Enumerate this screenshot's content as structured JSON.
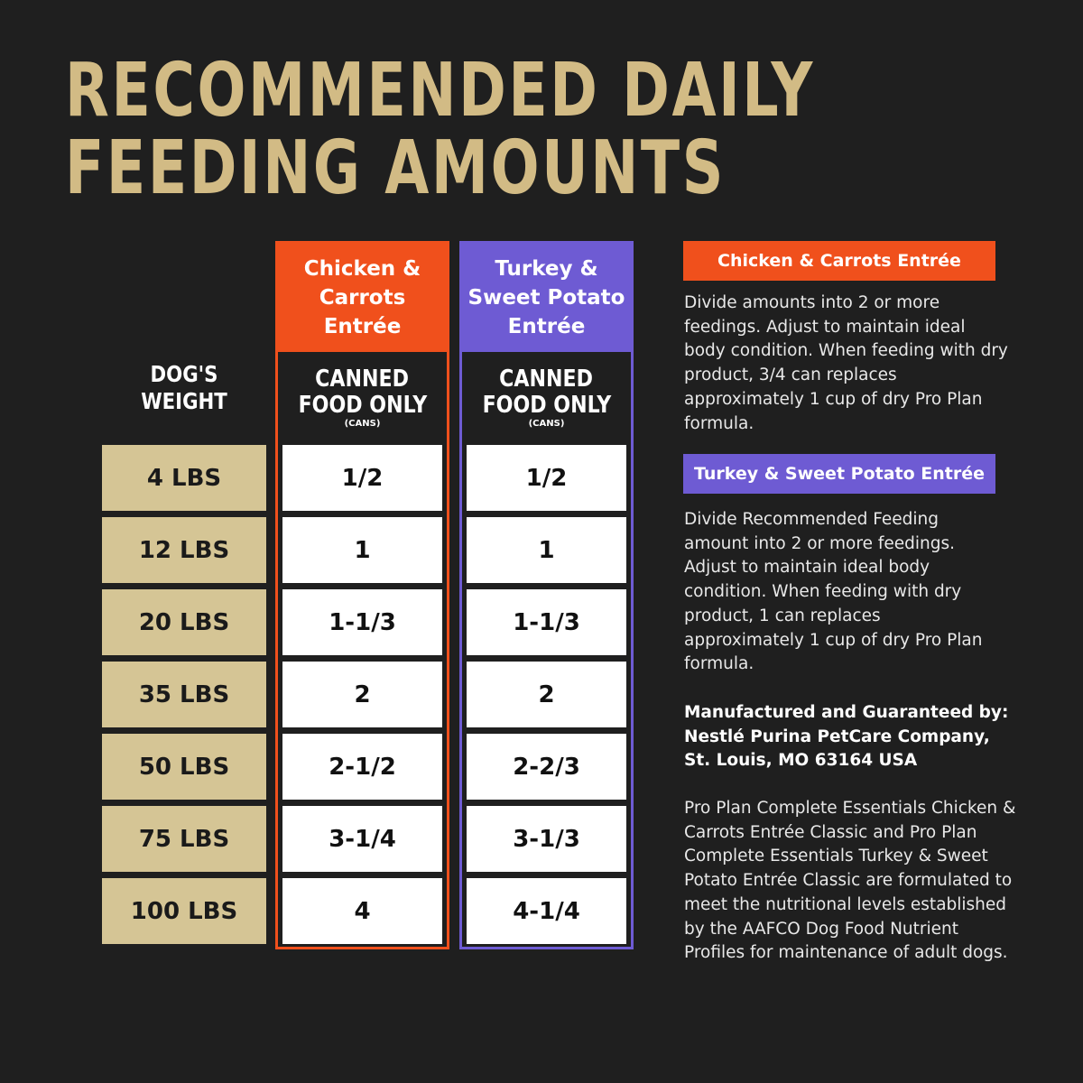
{
  "title": {
    "line1": "RECOMMENDED DAILY",
    "line2": "FEEDING AMOUNTS"
  },
  "colors": {
    "background": "#1f1f1f",
    "gold": "#d2bb85",
    "tan": "#d5c595",
    "orange": "#f0501c",
    "purple": "#6e5bd3"
  },
  "weight_header": {
    "line1": "DOG'S",
    "line2": "WEIGHT"
  },
  "weights": [
    "4 LBS",
    "12 LBS",
    "20 LBS",
    "35 LBS",
    "50 LBS",
    "75 LBS",
    "100 LBS"
  ],
  "columns": [
    {
      "name_lines": [
        "Chicken &",
        "Carrots",
        "Entrée"
      ],
      "sub1": "CANNED",
      "sub2": "FOOD ONLY",
      "sub3": "(CANS)",
      "values": [
        "1/2",
        "1",
        "1-1/3",
        "2",
        "2-1/2",
        "3-1/4",
        "4"
      ]
    },
    {
      "name_lines": [
        "Turkey &",
        "Sweet Potato",
        "Entrée"
      ],
      "sub1": "CANNED",
      "sub2": "FOOD ONLY",
      "sub3": "(CANS)",
      "values": [
        "1/2",
        "1",
        "1-1/3",
        "2",
        "2-2/3",
        "3-1/3",
        "4-1/4"
      ]
    }
  ],
  "notes": {
    "chicken_label": "Chicken & Carrots Entrée",
    "chicken_text": "Divide amounts into 2 or more feedings. Adjust to maintain ideal body condition. When feeding with dry product, 3/4 can replaces approximately 1 cup of dry Pro Plan formula.",
    "turkey_label": "Turkey & Sweet Potato Entrée",
    "turkey_text": "Divide Recommended Feeding amount into 2 or more feedings. Adjust to maintain ideal body condition. When feeding with dry product, 1 can replaces approximately 1 cup of dry Pro Plan formula.",
    "manufacturer": "Manufactured and Guaranteed by: Nestlé Purina PetCare Company, St. Louis, MO 63164 USA",
    "aafco": "Pro Plan Complete Essentials Chicken & Carrots Entrée Classic and Pro Plan Complete Essentials Turkey & Sweet Potato Entrée Classic are formulated to meet the nutritional levels established by the AAFCO Dog Food Nutrient Profiles for maintenance of adult dogs."
  }
}
